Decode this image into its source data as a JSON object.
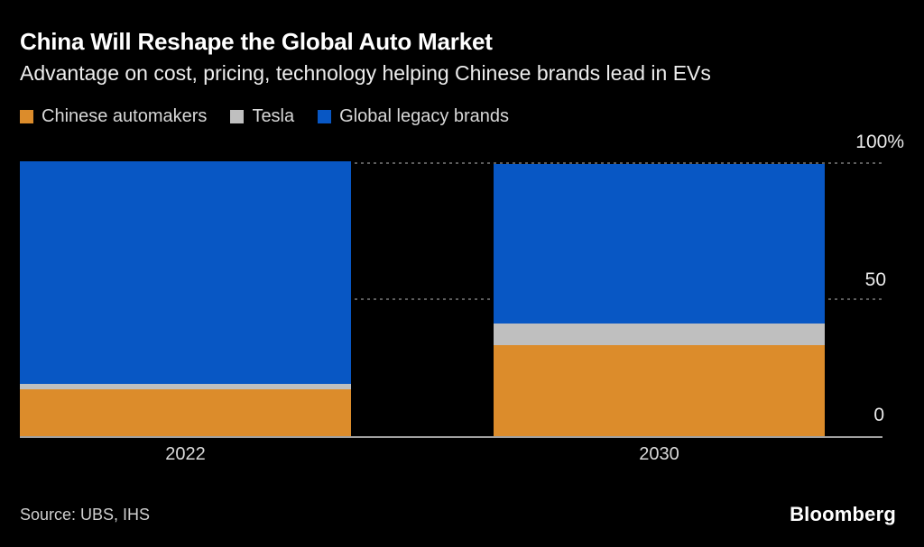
{
  "header": {
    "title": "China Will Reshape the Global Auto Market",
    "subtitle": "Advantage on cost, pricing, technology helping Chinese brands lead in EVs"
  },
  "legend": [
    {
      "label": "Chinese automakers",
      "color": "#dc8c2b"
    },
    {
      "label": "Tesla",
      "color": "#bfbfbf"
    },
    {
      "label": "Global legacy brands",
      "color": "#0857c4"
    }
  ],
  "chart_data": {
    "type": "bar",
    "stacked": true,
    "orientation": "vertical",
    "unit": "%",
    "categories": [
      "2022",
      "2030"
    ],
    "series": [
      {
        "name": "Chinese automakers",
        "color": "#dc8c2b",
        "values": [
          17,
          33
        ]
      },
      {
        "name": "Tesla",
        "color": "#bfbfbf",
        "values": [
          2,
          8
        ]
      },
      {
        "name": "Global legacy brands",
        "color": "#0857c4",
        "values": [
          81,
          58
        ]
      }
    ],
    "ylim": [
      0,
      100
    ],
    "yticks": [
      "100%",
      "50",
      "0"
    ],
    "ytick_values": [
      100,
      50,
      0
    ],
    "gridlines": [
      100,
      50
    ],
    "grid_style": "dotted",
    "legend_position": "top"
  },
  "footer": {
    "source": "Source: UBS, IHS",
    "brand": "Bloomberg"
  }
}
